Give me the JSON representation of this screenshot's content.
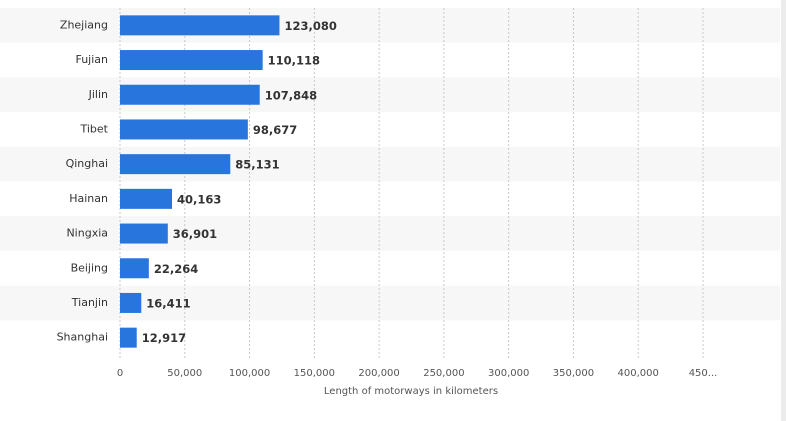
{
  "chart_data": {
    "type": "bar",
    "orientation": "horizontal",
    "x_label": "Length of motorways in kilometers",
    "categories": [
      "Zhejiang",
      "Fujian",
      "Jilin",
      "Tibet",
      "Qinghai",
      "Hainan",
      "Ningxia",
      "Beijing",
      "Tianjin",
      "Shanghai"
    ],
    "values": [
      123080,
      110118,
      107848,
      98677,
      85131,
      40163,
      36901,
      22264,
      16411,
      12917
    ],
    "value_labels": [
      "123,080",
      "110,118",
      "107,848",
      "98,677",
      "85,131",
      "40,163",
      "36,901",
      "22,264",
      "16,411",
      "12,917"
    ],
    "color": "#2876dd",
    "xlim": [
      0,
      450000
    ],
    "xticks": [
      0,
      {
        "value": 50000,
        "label": "50,000"
      },
      {
        "value": 100000,
        "label": "100,000"
      },
      {
        "value": 150000,
        "label": "150,000"
      },
      {
        "value": 200000,
        "label": "200,000"
      },
      {
        "value": 250000,
        "label": "250,000"
      },
      {
        "value": 300000,
        "label": "300,000"
      },
      {
        "value": 350000,
        "label": "350,000"
      },
      {
        "value": 400000,
        "label": "400,000"
      },
      {
        "value": 450000,
        "label": "450..."
      }
    ],
    "grid": true
  }
}
